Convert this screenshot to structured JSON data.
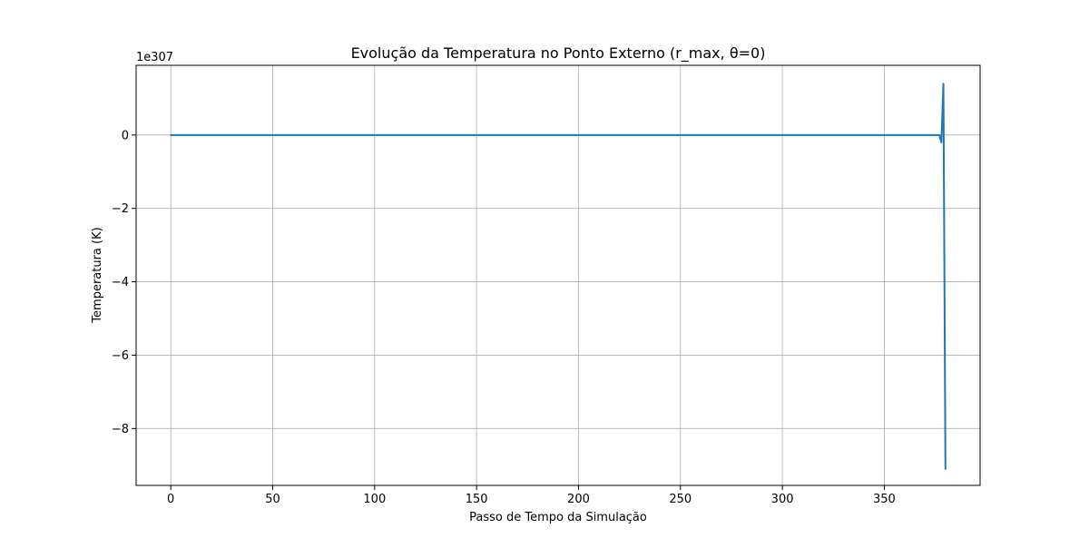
{
  "chart_data": {
    "type": "line",
    "title": "Evolução da Temperatura no Ponto Externo (r_max, θ=0)",
    "xlabel": "Passo de Tempo da Simulação",
    "ylabel": "Temperatura (K)",
    "y_offset_label": "1e307",
    "y_unit_multiplier": 1e+307,
    "xlim": [
      -17,
      397
    ],
    "ylim": [
      -9.55,
      1.9
    ],
    "xticks": [
      0,
      50,
      100,
      150,
      200,
      250,
      300,
      350
    ],
    "xtick_labels": [
      "0",
      "50",
      "100",
      "150",
      "200",
      "250",
      "300",
      "350"
    ],
    "yticks": [
      0,
      -2,
      -4,
      -6,
      -8
    ],
    "ytick_labels": [
      "0",
      "−2",
      "−4",
      "−6",
      "−8"
    ],
    "grid": true,
    "series": [
      {
        "color": "#1f77b4",
        "x": [
          0,
          50,
          100,
          150,
          200,
          250,
          300,
          350,
          377,
          378,
          379,
          380
        ],
        "y": [
          0,
          0,
          0,
          0,
          0,
          0,
          0,
          0,
          0.0,
          -0.2,
          1.4,
          -9.1
        ]
      }
    ]
  }
}
